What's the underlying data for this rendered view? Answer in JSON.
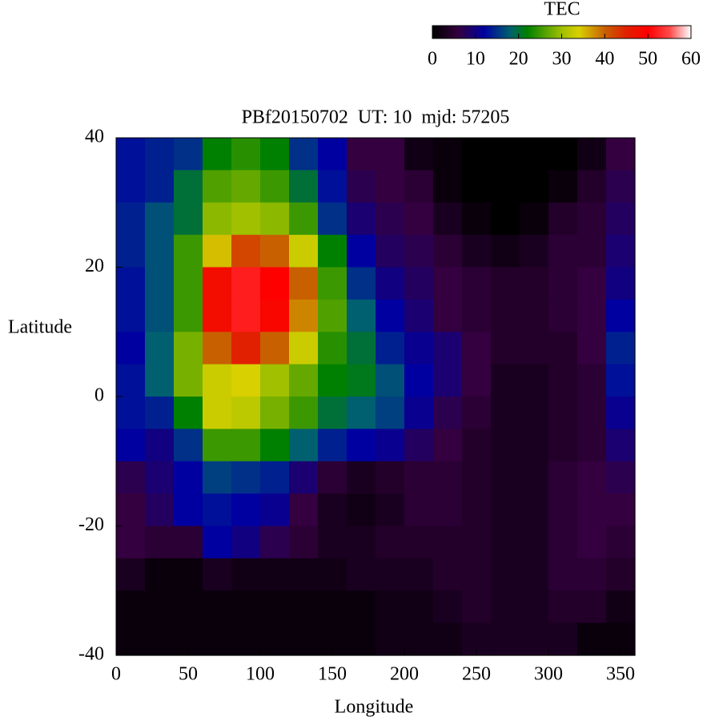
{
  "chart_data": {
    "type": "heatmap",
    "title": "PBf20150702  UT: 10  mjd: 57205",
    "x_label": "Longitude",
    "y_label": "Latitude",
    "colorbar_label": "TEC",
    "xlim": [
      0,
      360
    ],
    "ylim": [
      -40,
      40
    ],
    "xticks": [
      0,
      50,
      100,
      150,
      200,
      250,
      300,
      350
    ],
    "yticks": [
      40,
      20,
      0,
      -20,
      -40
    ],
    "clim": [
      0,
      60
    ],
    "cticks": [
      0,
      10,
      20,
      30,
      40,
      50,
      60
    ],
    "palette": [
      {
        "value": 0,
        "color": "#000000"
      },
      {
        "value": 6,
        "color": "#34003f"
      },
      {
        "value": 12,
        "color": "#0000a0"
      },
      {
        "value": 18,
        "color": "#006070"
      },
      {
        "value": 22,
        "color": "#008000"
      },
      {
        "value": 30,
        "color": "#a0c000"
      },
      {
        "value": 34,
        "color": "#d8d000"
      },
      {
        "value": 40,
        "color": "#c86000"
      },
      {
        "value": 45,
        "color": "#e02000"
      },
      {
        "value": 50,
        "color": "#ff0000"
      },
      {
        "value": 55,
        "color": "#ff4848"
      },
      {
        "value": 60,
        "color": "#ffffff"
      }
    ],
    "x": [
      10,
      30,
      50,
      70,
      90,
      110,
      130,
      150,
      170,
      190,
      210,
      230,
      250,
      270,
      290,
      310,
      330,
      350
    ],
    "y": [
      37.5,
      32.5,
      27.5,
      22.5,
      17.5,
      12.5,
      7.5,
      2.5,
      -2.5,
      -7.5,
      -12.5,
      -17.5,
      -22.5,
      -27.5,
      -32.5,
      -37.5
    ],
    "z": [
      [
        13,
        14,
        15,
        22,
        24,
        22,
        15,
        12,
        6,
        6,
        2,
        1,
        0,
        0,
        0,
        0,
        2,
        6
      ],
      [
        13,
        14,
        20,
        26,
        27,
        25,
        20,
        13,
        7,
        6,
        5,
        1,
        0,
        0,
        0,
        1,
        4,
        7
      ],
      [
        14,
        17,
        20,
        29,
        30,
        29,
        25,
        15,
        9,
        7,
        6,
        3,
        1,
        0,
        1,
        4,
        5,
        8
      ],
      [
        14,
        17,
        25,
        35,
        42,
        40,
        33,
        22,
        12,
        8,
        7,
        5,
        3,
        2,
        3,
        5,
        5,
        9
      ],
      [
        13,
        17,
        25,
        48,
        52,
        50,
        40,
        25,
        15,
        10,
        8,
        6,
        5,
        4,
        4,
        5,
        6,
        10
      ],
      [
        13,
        17,
        25,
        48,
        52,
        49,
        38,
        26,
        18,
        12,
        9,
        6,
        5,
        4,
        4,
        5,
        6,
        12
      ],
      [
        12,
        18,
        28,
        40,
        45,
        40,
        33,
        24,
        20,
        14,
        11,
        9,
        6,
        4,
        4,
        4,
        6,
        14
      ],
      [
        13,
        18,
        28,
        33,
        34,
        30,
        27,
        22,
        21,
        17,
        12,
        9,
        6,
        3,
        3,
        4,
        5,
        13
      ],
      [
        13,
        14,
        22,
        33,
        32,
        28,
        25,
        20,
        18,
        16,
        11,
        7,
        5,
        3,
        3,
        4,
        5,
        11
      ],
      [
        12,
        10,
        15,
        25,
        25,
        22,
        18,
        14,
        12,
        11,
        8,
        6,
        4,
        3,
        3,
        4,
        5,
        9
      ],
      [
        7,
        9,
        12,
        16,
        15,
        14,
        9,
        5,
        3,
        4,
        5,
        5,
        4,
        3,
        3,
        5,
        6,
        7
      ],
      [
        6,
        8,
        12,
        13,
        12,
        11,
        6,
        3,
        2,
        3,
        5,
        5,
        4,
        3,
        3,
        5,
        6,
        6
      ],
      [
        6,
        5,
        5,
        12,
        10,
        7,
        5,
        3,
        3,
        4,
        4,
        4,
        4,
        3,
        3,
        5,
        6,
        5
      ],
      [
        3,
        1,
        1,
        3,
        2,
        2,
        2,
        2,
        3,
        3,
        3,
        4,
        4,
        3,
        3,
        5,
        5,
        4
      ],
      [
        1,
        1,
        1,
        1,
        1,
        1,
        1,
        1,
        1,
        2,
        2,
        3,
        4,
        3,
        3,
        4,
        4,
        2
      ],
      [
        1,
        1,
        1,
        1,
        1,
        1,
        1,
        1,
        1,
        2,
        2,
        2,
        3,
        3,
        3,
        3,
        1,
        1
      ]
    ]
  }
}
